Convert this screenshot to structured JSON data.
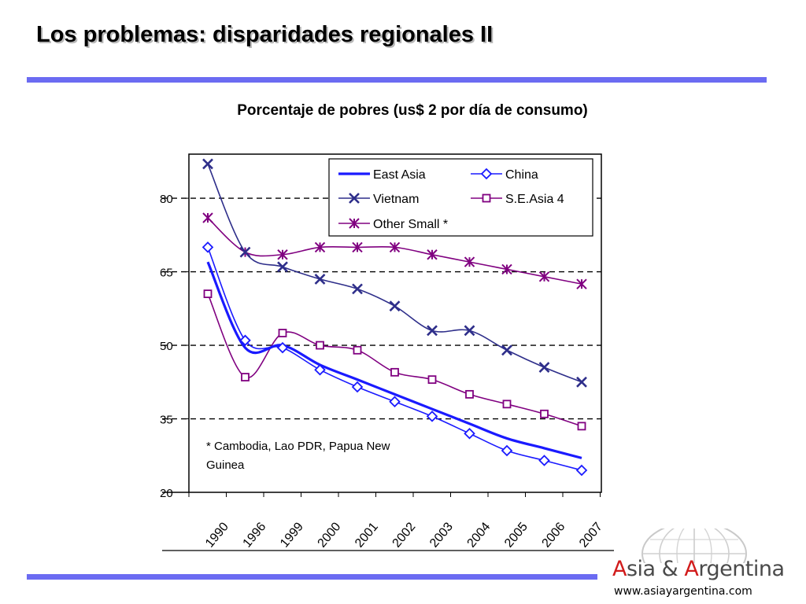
{
  "slide": {
    "title": "Los problemas: disparidades regionales II",
    "chart_heading": "Porcentaje de pobres (us$ 2 por día de consumo)"
  },
  "logo": {
    "brand_part1": "A",
    "brand_part2": "sia & ",
    "brand_part3": "A",
    "brand_part4": "rgentina",
    "url": "www.asiayargentina.com"
  },
  "colors": {
    "accent_rule": "#6b6bf2",
    "east_asia": "#1a1aff",
    "china": "#1a1aff",
    "vietnam": "#2e2e8a",
    "se_asia_4": "#800080",
    "other_small": "#800080",
    "logo_red": "#d11b1b"
  },
  "chart_data": {
    "type": "line",
    "title": "",
    "xlabel": "",
    "ylabel": "",
    "categories": [
      "1990",
      "1996",
      "1999",
      "2000",
      "2001",
      "2002",
      "2003",
      "2004",
      "2005",
      "2006",
      "2007"
    ],
    "yticks": [
      20,
      35,
      50,
      65,
      80
    ],
    "ytick_labels": [
      "20",
      "35",
      "50",
      "65",
      "80"
    ],
    "ylim": [
      20,
      89
    ],
    "grid": "dashed horizontal at 35, 50, 65, 80",
    "legend_position": "top-right",
    "note": "* Cambodia, Lao PDR, Papua New Guinea",
    "series": [
      {
        "name": "East Asia",
        "marker": "none",
        "color": "#1a1aff",
        "width": 3.2,
        "values": [
          67,
          49.5,
          50,
          46,
          43,
          40,
          37,
          34,
          31,
          29,
          27
        ]
      },
      {
        "name": "China",
        "marker": "diamond",
        "color": "#1a1aff",
        "width": 1.6,
        "values": [
          70,
          51,
          49.5,
          45,
          41.5,
          38.5,
          35.5,
          32,
          28.5,
          26.5,
          24.5
        ]
      },
      {
        "name": "Vietnam",
        "marker": "x",
        "color": "#2e2e8a",
        "width": 1.6,
        "values": [
          87,
          69,
          66,
          63.5,
          61.5,
          58,
          53,
          53,
          49,
          45.5,
          42.5
        ]
      },
      {
        "name": "S.E.Asia 4",
        "marker": "square",
        "color": "#800080",
        "width": 1.6,
        "values": [
          60.5,
          43.5,
          52.5,
          50,
          49,
          44.5,
          43,
          40,
          38,
          36,
          33.5
        ]
      },
      {
        "name": "Other Small *",
        "marker": "asterisk",
        "color": "#800080",
        "width": 1.6,
        "values": [
          76,
          69,
          68.5,
          70,
          70,
          70,
          68.5,
          67,
          65.5,
          64,
          62.5
        ]
      }
    ]
  }
}
